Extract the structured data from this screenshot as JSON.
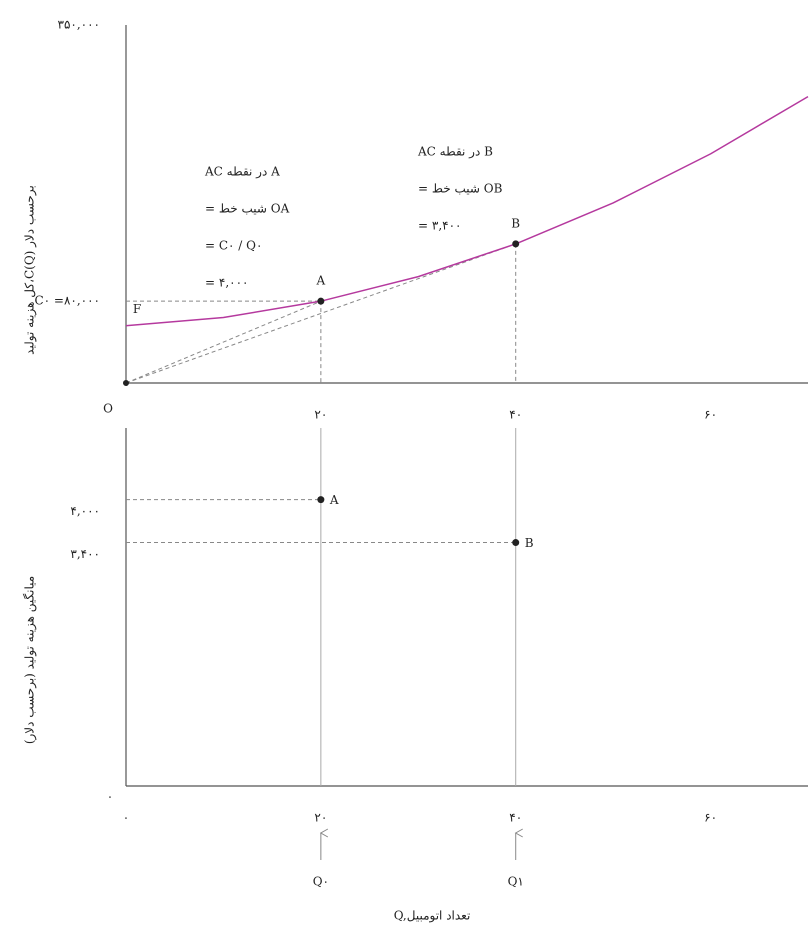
{
  "chart_data": [
    {
      "type": "line",
      "ylabel": "کل هزینه تولید،C(Q) برحسب دلار",
      "x": [
        0,
        10,
        20,
        30,
        40,
        50,
        60,
        70
      ],
      "values": [
        56000,
        64000,
        80000,
        104000,
        136000,
        176000,
        224000,
        280000
      ],
      "color": "#b5399e",
      "xlim": [
        0,
        70
      ],
      "ylim": [
        0,
        350000
      ],
      "xticks": [
        {
          "value": 20,
          "label": "۲۰"
        },
        {
          "value": 40,
          "label": "۴۰"
        },
        {
          "value": 60,
          "label": "۶۰"
        }
      ],
      "yticks": [
        {
          "value": 80000,
          "label": "C۰ =۸۰,۰۰۰"
        },
        {
          "value": 350000,
          "label": "۳۵۰,۰۰۰"
        }
      ],
      "origin_label": "O",
      "intercept_label": "F",
      "points": [
        {
          "label": "A",
          "x": 20,
          "y": 80000
        },
        {
          "label": "B",
          "x": 40,
          "y": 136000
        }
      ],
      "annotations": [
        [
          "AC در نقطه A",
          "= شیب خط OA",
          "= C۰ / Q۰",
          "= ۴,۰۰۰"
        ],
        [
          "AC در نقطه  B",
          "= شیب خط OB",
          "= ۳,۴۰۰"
        ]
      ]
    },
    {
      "type": "scatter",
      "ylabel": "میانگین هزینه تولید (برحسب دلار)",
      "xlabel": "Q,تعداد اتومبیل",
      "xlim": [
        0,
        70
      ],
      "ylim": [
        0,
        5000
      ],
      "xticks": [
        {
          "value": 0,
          "label": "۰"
        },
        {
          "value": 20,
          "label": "۲۰"
        },
        {
          "value": 40,
          "label": "۴۰"
        },
        {
          "value": 60,
          "label": "۶۰"
        }
      ],
      "yticks": [
        {
          "value": 3400,
          "label": "۳,۴۰۰"
        },
        {
          "value": 4000,
          "label": "۴,۰۰۰"
        }
      ],
      "origin_label": "٠",
      "points": [
        {
          "label": "A",
          "x": 20,
          "y": 4000
        },
        {
          "label": "B",
          "x": 40,
          "y": 3400
        }
      ],
      "quantity_labels": [
        "Q۰",
        "Q۱"
      ]
    }
  ]
}
